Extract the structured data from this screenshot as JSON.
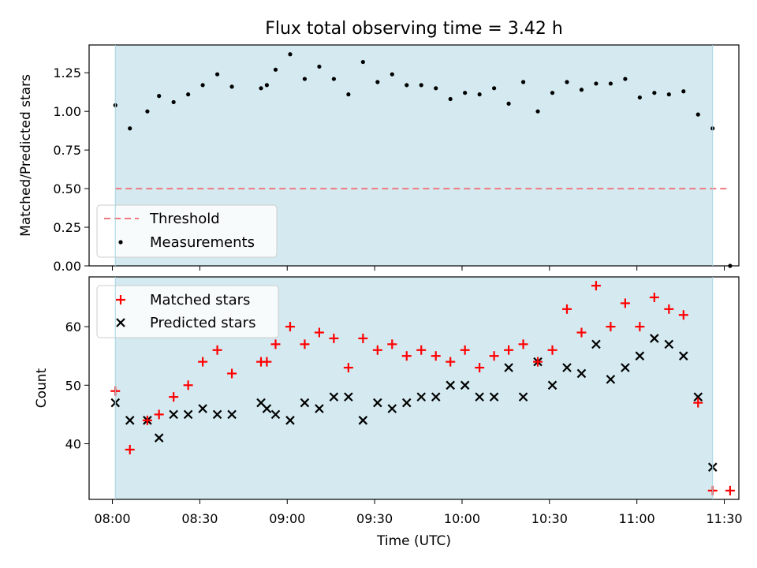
{
  "title": "Flux total observing time = 3.42 h",
  "colors": {
    "band": "#d4eaf0",
    "threshold": "#f07880",
    "matched": "#ff0000",
    "predicted": "#000000",
    "measurement": "#000000"
  },
  "chart_data": [
    {
      "type": "scatter",
      "panel": "top",
      "ylabel": "Matched/Predicted stars",
      "ylim": [
        0,
        1.43
      ],
      "yticks": [
        0.0,
        0.25,
        0.5,
        0.75,
        1.0,
        1.25
      ],
      "ytick_labels": [
        "0.00",
        "0.25",
        "0.50",
        "0.75",
        "1.00",
        "1.25"
      ],
      "x_range": "07:52 to 11:35",
      "shaded_interval": [
        "08:01",
        "11:26"
      ],
      "legend": {
        "position": "lower-left",
        "entries": [
          "Threshold",
          "Measurements"
        ]
      },
      "series": [
        {
          "name": "Threshold",
          "kind": "dashed-line",
          "x": [
            "08:01",
            "11:32"
          ],
          "y": [
            0.5,
            0.5
          ]
        },
        {
          "name": "Measurements",
          "kind": "points",
          "x": [
            "08:01",
            "08:06",
            "08:12",
            "08:16",
            "08:21",
            "08:26",
            "08:31",
            "08:36",
            "08:41",
            "08:51",
            "08:53",
            "08:56",
            "09:01",
            "09:06",
            "09:11",
            "09:16",
            "09:21",
            "09:26",
            "09:31",
            "09:36",
            "09:41",
            "09:46",
            "09:51",
            "09:56",
            "10:01",
            "10:06",
            "10:11",
            "10:16",
            "10:21",
            "10:26",
            "10:31",
            "10:36",
            "10:41",
            "10:46",
            "10:51",
            "10:56",
            "11:01",
            "11:06",
            "11:11",
            "11:16",
            "11:21",
            "11:26",
            "11:32"
          ],
          "y": [
            1.04,
            0.89,
            1.0,
            1.1,
            1.06,
            1.11,
            1.17,
            1.24,
            1.16,
            1.15,
            1.17,
            1.27,
            1.37,
            1.21,
            1.29,
            1.21,
            1.11,
            1.32,
            1.19,
            1.24,
            1.17,
            1.17,
            1.15,
            1.08,
            1.12,
            1.11,
            1.15,
            1.05,
            1.19,
            1.0,
            1.12,
            1.19,
            1.14,
            1.18,
            1.18,
            1.21,
            1.09,
            1.12,
            1.11,
            1.13,
            0.98,
            0.89,
            0.0
          ]
        }
      ]
    },
    {
      "type": "scatter",
      "panel": "bottom",
      "xlabel": "Time (UTC)",
      "ylabel": "Count",
      "ylim": [
        30.5,
        68.5
      ],
      "yticks": [
        40,
        50,
        60
      ],
      "ytick_labels": [
        "40",
        "50",
        "60"
      ],
      "xticks": [
        "08:00",
        "08:30",
        "09:00",
        "09:30",
        "10:00",
        "10:30",
        "11:00",
        "11:30"
      ],
      "shaded_interval": [
        "08:01",
        "11:26"
      ],
      "legend": {
        "position": "upper-left",
        "entries": [
          "Matched stars",
          "Predicted stars"
        ]
      },
      "series": [
        {
          "name": "Matched stars",
          "marker": "+",
          "x": [
            "08:01",
            "08:06",
            "08:12",
            "08:16",
            "08:21",
            "08:26",
            "08:31",
            "08:36",
            "08:41",
            "08:51",
            "08:53",
            "08:56",
            "09:01",
            "09:06",
            "09:11",
            "09:16",
            "09:21",
            "09:26",
            "09:31",
            "09:36",
            "09:41",
            "09:46",
            "09:51",
            "09:56",
            "10:01",
            "10:06",
            "10:11",
            "10:16",
            "10:21",
            "10:26",
            "10:31",
            "10:36",
            "10:41",
            "10:46",
            "10:51",
            "10:56",
            "11:01",
            "11:06",
            "11:11",
            "11:16",
            "11:21",
            "11:26",
            "11:32"
          ],
          "values": [
            49,
            39,
            44,
            45,
            48,
            50,
            54,
            56,
            52,
            54,
            54,
            57,
            60,
            57,
            59,
            58,
            53,
            58,
            56,
            57,
            55,
            56,
            55,
            54,
            56,
            53,
            55,
            56,
            57,
            54,
            56,
            63,
            59,
            67,
            60,
            64,
            60,
            65,
            63,
            62,
            47,
            32,
            32
          ]
        },
        {
          "name": "Predicted stars",
          "marker": "x",
          "x": [
            "08:01",
            "08:06",
            "08:12",
            "08:16",
            "08:21",
            "08:26",
            "08:31",
            "08:36",
            "08:41",
            "08:51",
            "08:53",
            "08:56",
            "09:01",
            "09:06",
            "09:11",
            "09:16",
            "09:21",
            "09:26",
            "09:31",
            "09:36",
            "09:41",
            "09:46",
            "09:51",
            "09:56",
            "10:01",
            "10:06",
            "10:11",
            "10:16",
            "10:21",
            "10:26",
            "10:31",
            "10:36",
            "10:41",
            "10:46",
            "10:51",
            "10:56",
            "11:01",
            "11:06",
            "11:11",
            "11:16",
            "11:21",
            "11:26"
          ],
          "values": [
            47,
            44,
            44,
            41,
            45,
            45,
            46,
            45,
            45,
            47,
            46,
            45,
            44,
            47,
            46,
            48,
            48,
            44,
            47,
            46,
            47,
            48,
            48,
            50,
            50,
            48,
            48,
            53,
            48,
            54,
            50,
            53,
            52,
            57,
            51,
            53,
            55,
            58,
            57,
            55,
            48,
            36
          ]
        }
      ]
    }
  ]
}
